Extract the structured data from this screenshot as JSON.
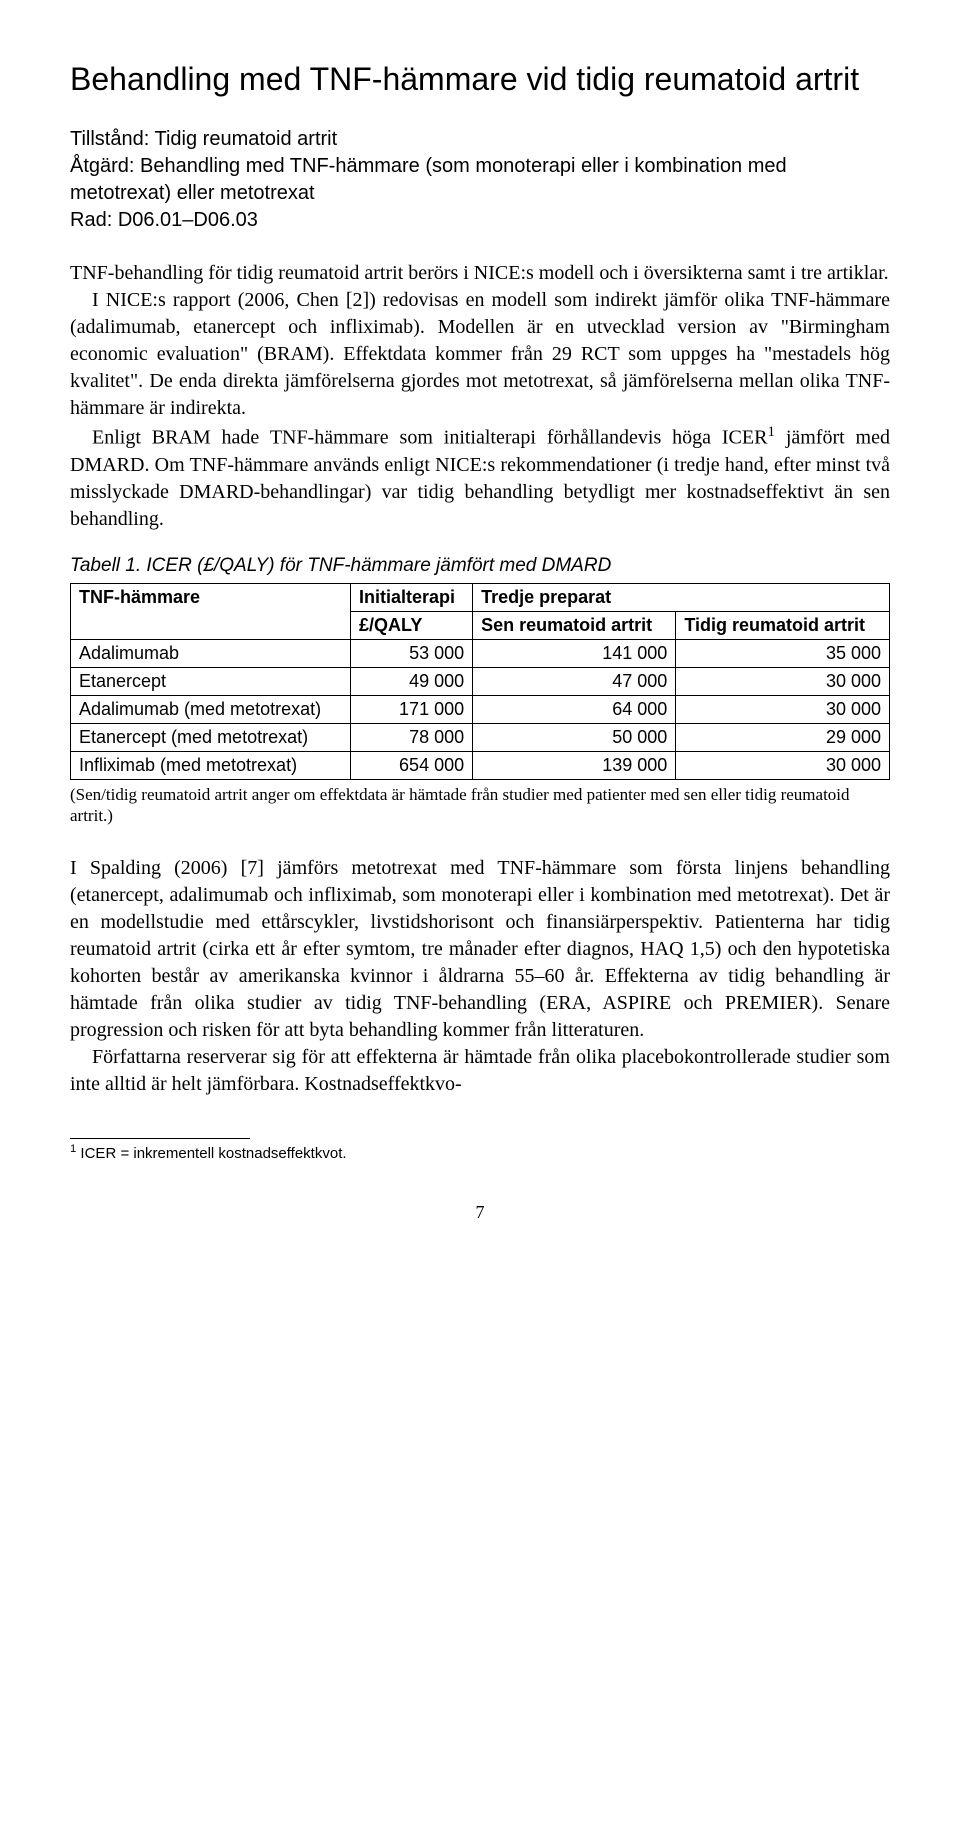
{
  "title": "Behandling med TNF-hämmare vid tidig reumatoid artrit",
  "meta": {
    "tillstand_label": "Tillstånd:",
    "tillstand_value": "Tidig reumatoid artrit",
    "atgard_label": "Åtgärd:",
    "atgard_value": "Behandling med TNF-hämmare (som monoterapi eller i kombination med metotrexat) eller metotrexat",
    "rad_label": "Rad:",
    "rad_value": "D06.01–D06.03"
  },
  "para1_a": "TNF-behandling för tidig reumatoid artrit berörs i NICE:s modell och i översikterna samt i tre artiklar.",
  "para1_b": "I NICE:s rapport (2006, Chen [2]) redovisas en modell som indirekt jämför olika TNF-hämmare (adalimumab, etanercept och infliximab). Modellen är en utvecklad version av \"Birmingham economic evaluation\" (BRAM). Effektdata kommer från 29 RCT som uppges ha \"mestadels hög kvalitet\". De enda direkta jämförelserna gjordes mot metotrexat, så jämförelserna mellan olika TNF-hämmare är indirekta.",
  "para1_c": "Enligt BRAM hade TNF-hämmare som initialterapi förhållandevis höga ICER",
  "para1_c_tail": " jämfört med DMARD. Om TNF-hämmare används enligt NICE:s rekommendationer (i tredje hand, efter minst två misslyckade DMARD-behandlingar) var tidig behandling betydligt mer kostnadseffektivt än sen behandling.",
  "table": {
    "caption": "Tabell 1. ICER (£/QALY) för TNF-hämmare jämfört med DMARD",
    "col1": "TNF-hämmare",
    "col2_top": "Initialterapi",
    "col2_sub": "£/QALY",
    "col3_top": "Tredje preparat",
    "col3_sub": "Sen reumatoid artrit",
    "col4_sub": "Tidig reumatoid artrit",
    "rows": [
      {
        "name": "Adalimumab",
        "v1": "53 000",
        "v2": "141 000",
        "v3": "35 000"
      },
      {
        "name": "Etanercept",
        "v1": "49 000",
        "v2": "47 000",
        "v3": "30 000"
      },
      {
        "name": "Adalimumab (med metotrexat)",
        "v1": "171 000",
        "v2": "64 000",
        "v3": "30 000"
      },
      {
        "name": "Etanercept (med metotrexat)",
        "v1": "78 000",
        "v2": "50 000",
        "v3": "29 000"
      },
      {
        "name": "Infliximab (med metotrexat)",
        "v1": "654 000",
        "v2": "139 000",
        "v3": "30 000"
      }
    ],
    "note": "(Sen/tidig reumatoid artrit anger om effektdata är hämtade från studier med patienter med sen eller tidig reumatoid artrit.)"
  },
  "para2_a": "I Spalding (2006) [7] jämförs metotrexat med TNF-hämmare som första linjens behandling (etanercept, adalimumab och infliximab, som monoterapi eller i kombination med metotrexat). Det är en modellstudie med ettårscykler, livstidshorisont och finansiärperspektiv. Patienterna har tidig reumatoid artrit (cirka ett år efter symtom, tre månader efter diagnos, HAQ 1,5) och den hypotetiska kohorten består av amerikanska kvinnor i åldrarna 55–60 år. Effekterna av tidig behandling är hämtade från olika studier av tidig TNF-behandling (ERA, ASPIRE och PREMIER). Senare progression och risken för att byta behandling kommer från litteraturen.",
  "para2_b": "Författarna reserverar sig för att effekterna är hämtade från olika placebokontrollerade studier som inte alltid är helt jämförbara. Kostnadseffektkvo-",
  "footnote_marker": "1",
  "footnote_text": " ICER = inkrementell kostnadseffektkvot.",
  "page_number": "7"
}
